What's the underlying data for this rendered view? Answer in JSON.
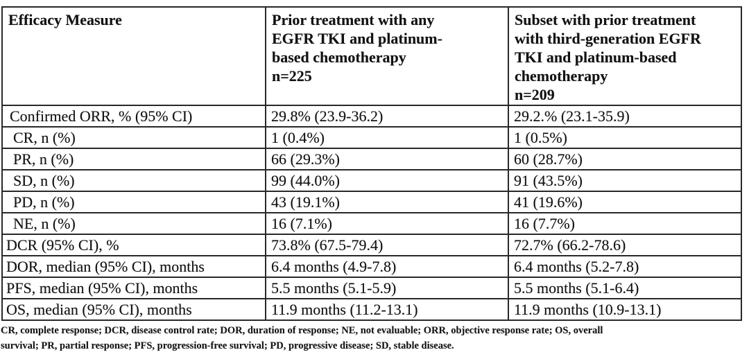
{
  "colors": {
    "background": "#ffffff",
    "text": "#121212",
    "border": "#282828"
  },
  "table": {
    "header": {
      "columns": [
        {
          "lines": [
            "Efficacy Measure"
          ]
        },
        {
          "lines": [
            "Prior treatment with any",
            "EGFR TKI and platinum-",
            "based chemotherapy",
            "n=225"
          ]
        },
        {
          "lines": [
            "Subset with prior treatment",
            "with third-generation EGFR",
            "TKI and platinum-based",
            "chemotherapy",
            "n=209"
          ]
        }
      ]
    },
    "rows": [
      {
        "measure": "Confirmed ORR, % (95% CI)",
        "indent": 1,
        "values": [
          "29.8% (23.9-36.2)",
          "29.2.% (23.1-35.9)"
        ]
      },
      {
        "measure": "CR, n (%)",
        "indent": 2,
        "values": [
          "1 (0.4%)",
          "1 (0.5%)"
        ]
      },
      {
        "measure": "PR, n (%)",
        "indent": 2,
        "values": [
          "66 (29.3%)",
          "60 (28.7%)"
        ]
      },
      {
        "measure": "SD, n (%)",
        "indent": 2,
        "values": [
          "99 (44.0%)",
          "91 (43.5%)"
        ]
      },
      {
        "measure": "PD, n (%)",
        "indent": 2,
        "values": [
          "43 (19.1%)",
          "41 (19.6%)"
        ]
      },
      {
        "measure": "NE, n (%)",
        "indent": 2,
        "values": [
          "16 (7.1%)",
          "16 (7.7%)"
        ]
      },
      {
        "measure": "DCR (95% CI), %",
        "indent": 0,
        "values": [
          "73.8% (67.5-79.4)",
          "72.7% (66.2-78.6)"
        ]
      },
      {
        "measure": "DOR, median (95% CI), months",
        "indent": 0,
        "values": [
          "6.4 months (4.9-7.8)",
          "6.4 months (5.2-7.8)"
        ]
      },
      {
        "measure": "PFS, median (95% CI), months",
        "indent": 0,
        "values": [
          "5.5 months (5.1-5.9)",
          "5.5 months (5.1-6.4)"
        ]
      },
      {
        "measure": "OS, median (95% CI), months",
        "indent": 0,
        "values": [
          "11.9 months (11.2-13.1)",
          "11.9 months (10.9-13.1)"
        ]
      }
    ]
  },
  "footnote": {
    "line1": "CR, complete response; DCR, disease control rate; DOR, duration of response; NE, not evaluable; ORR, objective response rate; OS, overall",
    "line2": "survival; PR, partial response; PFS, progression-free survival; PD, progressive disease; SD, stable disease."
  }
}
